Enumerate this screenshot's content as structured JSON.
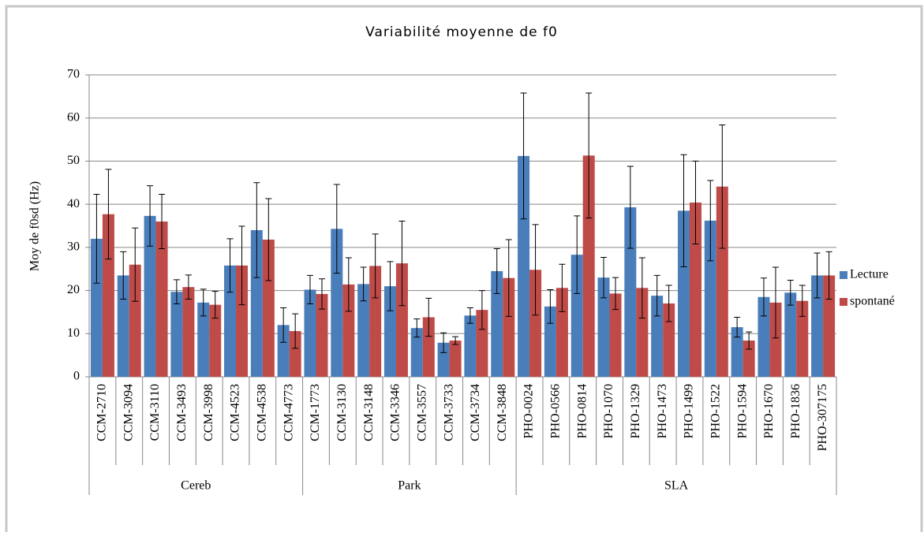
{
  "chart_data": {
    "type": "bar",
    "title": "Variabilité moyenne de f0",
    "y_label": "Moy de f0sd (Hz)",
    "groups": [
      {
        "name": "Cereb",
        "categories": [
          "CCM-2710",
          "CCM-3094",
          "CCM-3110",
          "CCM-3493",
          "CCM-3998",
          "CCM-4523",
          "CCM-4538",
          "CCM-4773"
        ]
      },
      {
        "name": "Park",
        "categories": [
          "CCM-1773",
          "CCM-3130",
          "CCM-3148",
          "CCM-3346",
          "CCM-3557",
          "CCM-3733",
          "CCM-3734",
          "CCM-3848"
        ]
      },
      {
        "name": "SLA",
        "categories": [
          "PHO-0024",
          "PHO-0566",
          "PHO-0814",
          "PHO-1070",
          "PHO-1329",
          "PHO-1473",
          "PHO-1499",
          "PHO-1522",
          "PHO-1594",
          "PHO-1670",
          "PHO-1836",
          "PHO-307175"
        ]
      }
    ],
    "series": [
      {
        "name": "Lecture",
        "color": "#4a7ebb",
        "values": [
          32,
          23.5,
          37.3,
          19.7,
          17.2,
          25.8,
          34,
          12,
          20.2,
          34.3,
          21.5,
          21,
          11.3,
          7.9,
          14.2,
          24.5,
          51.2,
          16.3,
          28.3,
          23,
          39.3,
          18.8,
          38.5,
          36.2,
          11.5,
          18.5,
          19.5,
          23.5
        ],
        "errors": [
          10.3,
          5.5,
          7,
          2.8,
          3.1,
          6.2,
          11,
          4,
          3.3,
          10.3,
          3.9,
          5.7,
          2.1,
          2.3,
          1.8,
          5.2,
          14.6,
          3.9,
          9,
          4.7,
          9.5,
          4.7,
          13,
          9.3,
          2.3,
          4.4,
          2.9,
          5.2
        ]
      },
      {
        "name": "spontané",
        "color": "#be4b48",
        "values": [
          37.7,
          26,
          36,
          20.8,
          16.7,
          25.8,
          31.8,
          10.6,
          19.2,
          21.4,
          25.7,
          26.3,
          13.8,
          8.4,
          15.5,
          22.9,
          24.8,
          20.6,
          51.3,
          19.3,
          20.6,
          17,
          40.4,
          44.1,
          8.4,
          17.2,
          17.6,
          23.5
        ],
        "errors": [
          10.4,
          8.5,
          6.3,
          2.8,
          3.1,
          9.1,
          9.5,
          4,
          3.5,
          6.2,
          7.4,
          9.8,
          4.4,
          0.9,
          4.5,
          8.9,
          10.5,
          5.5,
          14.5,
          3.7,
          7,
          4.2,
          9.6,
          14.3,
          2,
          8.2,
          3.6,
          5.5
        ]
      }
    ],
    "ylim": [
      0,
      70
    ],
    "yticks": [
      0,
      10,
      20,
      30,
      40,
      50,
      60,
      70
    ],
    "grid": true,
    "legend": "right"
  }
}
